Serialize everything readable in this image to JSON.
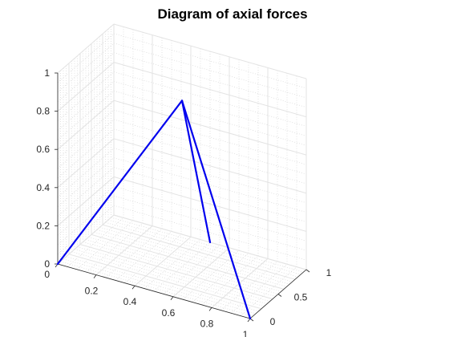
{
  "chart_data": {
    "type": "line3d",
    "title": "Diagram of axial forces",
    "xlabel": "",
    "ylabel": "",
    "zlabel": "",
    "xlim": [
      0,
      1
    ],
    "ylim": [
      0,
      1
    ],
    "zlim": [
      0,
      1
    ],
    "xticks": [
      "0",
      "0.2",
      "0.4",
      "0.6",
      "0.8",
      "1"
    ],
    "yticks": [
      "0",
      "0.5",
      "1"
    ],
    "zticks": [
      "0",
      "0.2",
      "0.4",
      "0.6",
      "0.8",
      "1"
    ],
    "grid": true,
    "minor_grid": true,
    "view": "3d-isometric",
    "line_color": "#0000ee",
    "series": [
      {
        "members": [
          {
            "from": [
              0,
              0,
              0
            ],
            "to": [
              0.5,
              0.5,
              0.87
            ]
          },
          {
            "from": [
              1,
              0,
              0
            ],
            "to": [
              0.5,
              0.5,
              0.87
            ]
          },
          {
            "from": [
              0.5,
              1,
              0
            ],
            "to": [
              0.5,
              0.5,
              0.87
            ]
          }
        ]
      }
    ]
  }
}
